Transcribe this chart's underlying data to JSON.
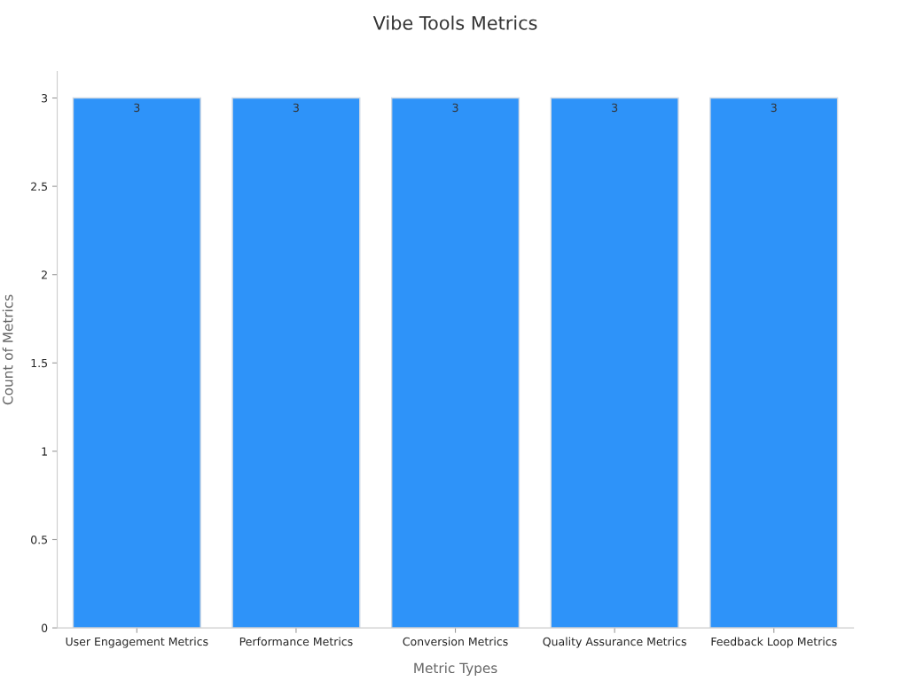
{
  "chart_data": {
    "type": "bar",
    "title": "Vibe Tools Metrics",
    "xlabel": "Metric Types",
    "ylabel": "Count of Metrics",
    "categories": [
      "User Engagement Metrics",
      "Performance Metrics",
      "Conversion Metrics",
      "Quality Assurance Metrics",
      "Feedback Loop Metrics"
    ],
    "values": [
      3,
      3,
      3,
      3,
      3
    ],
    "color": "#2e93f9",
    "ylim": [
      0,
      3.15
    ],
    "yticks": [
      0,
      0.5,
      1,
      1.5,
      2,
      2.5,
      3
    ],
    "grid": false,
    "data_labels": true
  }
}
